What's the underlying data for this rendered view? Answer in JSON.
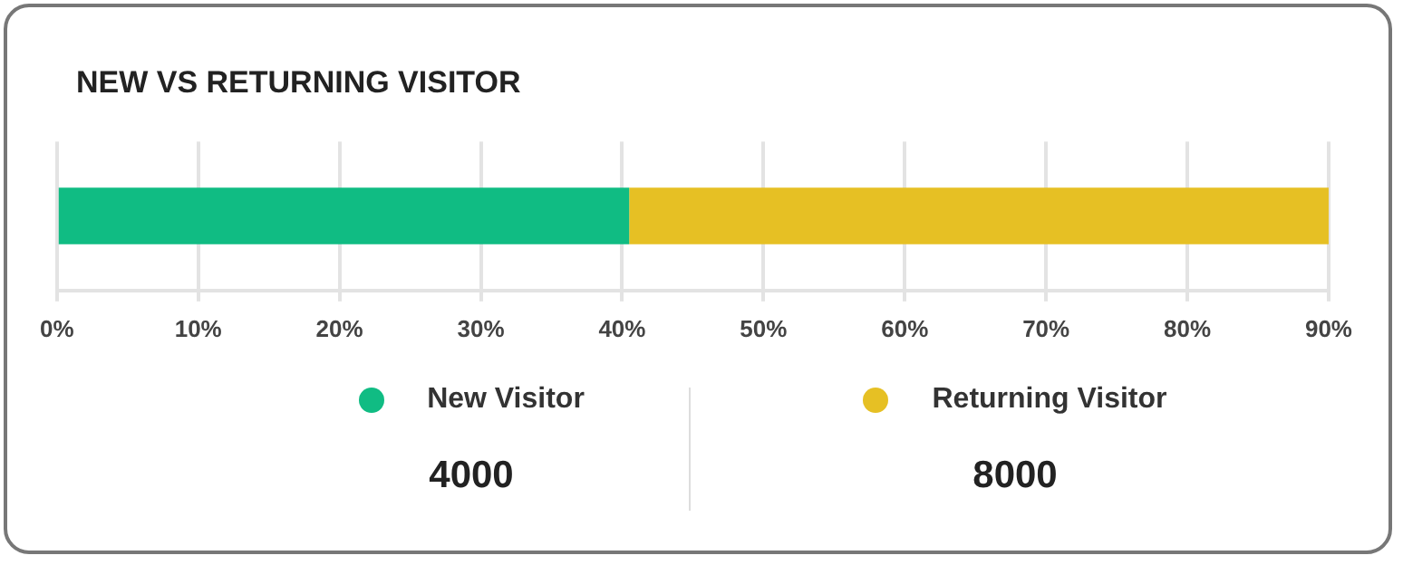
{
  "chart_data": {
    "type": "bar",
    "title": "NEW VS RETURNING VISITOR",
    "orientation": "horizontal",
    "stacked": true,
    "categories": [
      null
    ],
    "series": [
      {
        "name": "New Visitor",
        "color": "#10bc83",
        "values": [
          40.5
        ]
      },
      {
        "name": "Returning Visitor",
        "color": "#e6c024",
        "values": [
          49.5
        ]
      }
    ],
    "xlim": [
      0,
      90
    ],
    "xticks": [
      {
        "value": 0,
        "label": "0%"
      },
      {
        "value": 10,
        "label": "10%"
      },
      {
        "value": 20,
        "label": "20%"
      },
      {
        "value": 30,
        "label": "30%"
      },
      {
        "value": 40,
        "label": "40%"
      },
      {
        "value": 50,
        "label": "50%"
      },
      {
        "value": 60,
        "label": "60%"
      },
      {
        "value": 70,
        "label": "70%"
      },
      {
        "value": 80,
        "label": "80%"
      },
      {
        "value": 90,
        "label": "90%"
      }
    ],
    "grid": "x",
    "legend": "bottom",
    "annotations": [
      "4000",
      "8000"
    ]
  }
}
